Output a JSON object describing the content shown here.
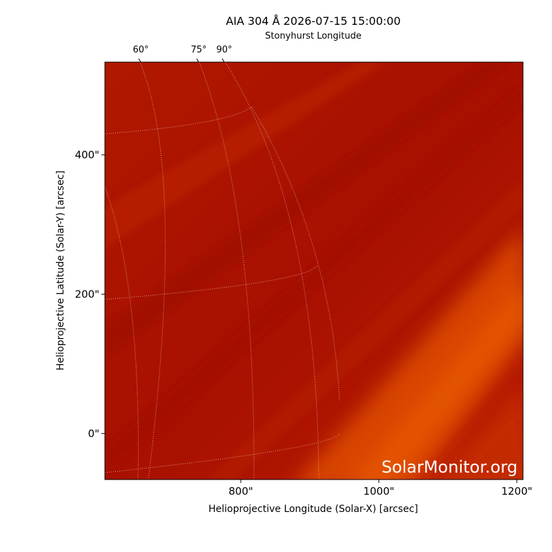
{
  "chart_data": {
    "type": "image",
    "title": "AIA 304 Å 2026-07-15 15:00:00",
    "top_axis_label": "Stonyhurst Longitude",
    "x_label": "Helioprojective Longitude (Solar-X) [arcsec]",
    "y_label": "Helioprojective Latitude (Solar-Y) [arcsec]",
    "xlim": [
      603,
      1209
    ],
    "ylim": [
      -66,
      533
    ],
    "xticks": [
      {
        "value": 800,
        "label": "800\""
      },
      {
        "value": 1000,
        "label": "1000\""
      },
      {
        "value": 1200,
        "label": "1200\""
      }
    ],
    "yticks": [
      {
        "value": 0,
        "label": "0\""
      },
      {
        "value": 200,
        "label": "200\""
      },
      {
        "value": 400,
        "label": "400\""
      }
    ],
    "top_ticks": [
      {
        "value": 60,
        "label": "60°"
      },
      {
        "value": 75,
        "label": "75°"
      },
      {
        "value": 90,
        "label": "90°"
      }
    ],
    "watermark": "SolarMonitor.org"
  }
}
